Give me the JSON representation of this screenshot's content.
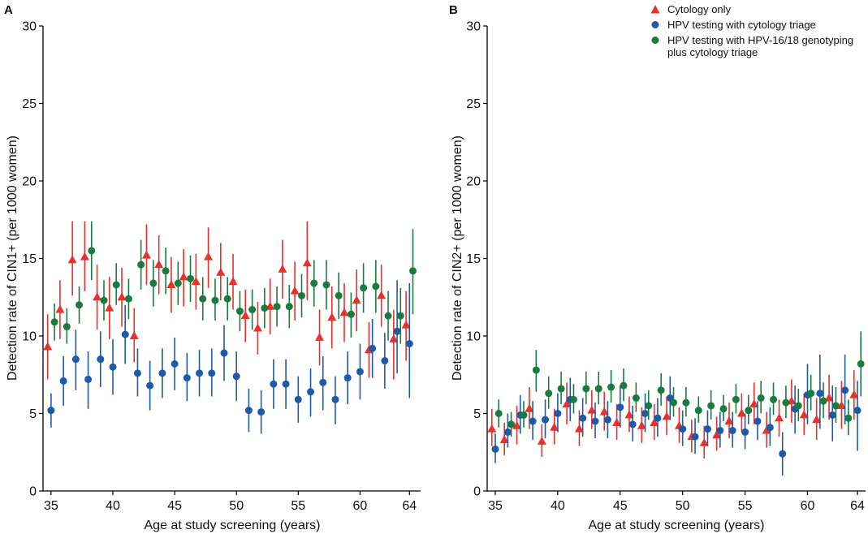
{
  "chart_data": [
    {
      "panel_label": "A",
      "type": "scatter",
      "xlabel": "Age at study screening (years)",
      "ylabel": "Detection rate of CIN1+ (per 1000 women)",
      "xticks": [
        35,
        40,
        45,
        50,
        55,
        60,
        64
      ],
      "yticks": [
        0,
        5,
        10,
        15,
        20,
        25,
        30
      ],
      "xlim": [
        34.35,
        64.9
      ],
      "ylim": [
        0,
        30
      ],
      "grid": false,
      "x": [
        35,
        36,
        37,
        38,
        39,
        40,
        41,
        42,
        43,
        44,
        45,
        46,
        47,
        48,
        49,
        50,
        51,
        52,
        53,
        54,
        55,
        56,
        57,
        58,
        59,
        60,
        61,
        62,
        63,
        64
      ],
      "series": [
        {
          "marker": "triangle",
          "color": "#e8312a",
          "values": [
            9.3,
            11.7,
            14.9,
            15.1,
            12.5,
            11.8,
            12.5,
            10.0,
            15.2,
            14.6,
            13.3,
            13.8,
            13.5,
            15.1,
            14.1,
            13.5,
            11.3,
            10.5,
            11.9,
            14.3,
            12.9,
            14.7,
            9.9,
            11.2,
            11.5,
            12.3,
            9.1,
            12.6,
            9.8,
            10.7
          ],
          "ci_low": [
            7.2,
            9.8,
            12.6,
            12.9,
            10.4,
            9.8,
            10.6,
            8.3,
            13.3,
            12.7,
            11.5,
            11.9,
            11.7,
            13.1,
            12.3,
            11.7,
            9.6,
            8.8,
            10.1,
            12.4,
            11.0,
            12.3,
            8.1,
            9.2,
            9.6,
            10.3,
            7.3,
            10.6,
            7.2,
            8.4
          ],
          "ci_high": [
            11.4,
            13.6,
            17.4,
            17.4,
            14.6,
            13.8,
            14.4,
            11.8,
            17.2,
            16.5,
            15.1,
            15.6,
            15.3,
            17.0,
            16.0,
            15.3,
            13.0,
            12.2,
            13.7,
            16.2,
            14.8,
            17.4,
            11.7,
            13.2,
            13.4,
            14.3,
            10.9,
            14.6,
            11.7,
            12.9
          ]
        },
        {
          "marker": "circle",
          "color": "#1f5aa8",
          "values": [
            5.2,
            7.1,
            8.5,
            7.2,
            8.5,
            8.0,
            10.1,
            7.6,
            6.8,
            7.6,
            8.2,
            7.3,
            7.6,
            7.6,
            8.9,
            7.4,
            5.2,
            5.1,
            6.9,
            6.9,
            5.9,
            6.4,
            7.0,
            5.9,
            7.3,
            7.7,
            9.2,
            8.4,
            10.3,
            9.5
          ],
          "ci_low": [
            4.1,
            5.5,
            6.5,
            5.3,
            6.7,
            6.2,
            8.2,
            6.1,
            5.2,
            6.0,
            6.5,
            5.8,
            6.1,
            6.1,
            7.1,
            5.8,
            3.8,
            3.7,
            5.3,
            5.3,
            4.4,
            4.8,
            5.2,
            4.3,
            5.6,
            5.9,
            7.3,
            6.6,
            7.6,
            6.0
          ],
          "ci_high": [
            6.3,
            8.7,
            10.4,
            9.0,
            10.3,
            9.8,
            12.0,
            9.2,
            8.4,
            9.2,
            9.9,
            8.9,
            9.1,
            9.2,
            10.7,
            9.0,
            6.6,
            6.5,
            8.5,
            8.5,
            7.4,
            7.9,
            8.7,
            7.4,
            9.0,
            9.5,
            11.1,
            10.2,
            13.6,
            13.4
          ]
        },
        {
          "marker": "circle",
          "color": "#1b7b3f",
          "values": [
            10.9,
            10.6,
            12.0,
            15.5,
            12.3,
            13.3,
            12.4,
            14.6,
            13.4,
            14.2,
            13.4,
            13.7,
            12.4,
            12.3,
            12.4,
            11.6,
            11.7,
            11.8,
            11.9,
            11.9,
            12.6,
            13.4,
            13.3,
            12.6,
            11.4,
            13.1,
            13.2,
            11.3,
            11.3,
            14.2
          ],
          "ci_low": [
            9.7,
            9.5,
            10.8,
            13.6,
            11.0,
            12.0,
            11.1,
            13.0,
            11.9,
            12.7,
            12.0,
            12.2,
            11.0,
            11.0,
            11.0,
            10.3,
            10.4,
            10.5,
            10.6,
            10.5,
            11.2,
            11.9,
            11.7,
            11.1,
            9.9,
            11.5,
            11.5,
            9.7,
            9.5,
            11.4
          ],
          "ci_high": [
            12.1,
            11.8,
            13.2,
            17.4,
            13.6,
            14.7,
            13.7,
            16.2,
            14.9,
            15.7,
            14.8,
            15.2,
            13.8,
            13.7,
            13.8,
            12.9,
            13.0,
            13.1,
            13.2,
            13.3,
            14.0,
            14.9,
            14.9,
            14.1,
            12.8,
            14.7,
            14.9,
            12.9,
            13.1,
            16.9
          ]
        }
      ]
    },
    {
      "panel_label": "B",
      "type": "scatter",
      "xlabel": "Age at study screening (years)",
      "ylabel": "Detection rate of CIN2+ (per 1000 women)",
      "xticks": [
        35,
        40,
        45,
        50,
        55,
        60,
        64
      ],
      "yticks": [
        0,
        5,
        10,
        15,
        20,
        25,
        30
      ],
      "xlim": [
        34.35,
        64.65
      ],
      "ylim": [
        0,
        30
      ],
      "grid": false,
      "legend": "top-right",
      "x": [
        35,
        36,
        37,
        38,
        39,
        40,
        41,
        42,
        43,
        44,
        45,
        46,
        47,
        48,
        49,
        50,
        51,
        52,
        53,
        54,
        55,
        56,
        57,
        58,
        59,
        60,
        61,
        62,
        63,
        64
      ],
      "series": [
        {
          "name": "Cytology only",
          "marker": "triangle",
          "color": "#e8312a",
          "values": [
            4.0,
            3.3,
            4.2,
            5.3,
            3.2,
            4.1,
            5.6,
            4.0,
            5.2,
            5.1,
            4.4,
            4.9,
            4.2,
            4.4,
            4.8,
            4.2,
            3.5,
            3.1,
            3.6,
            4.5,
            5.0,
            5.6,
            3.9,
            4.7,
            5.8,
            4.9,
            4.6,
            6.0,
            5.5,
            6.2
          ],
          "ci_low": [
            2.9,
            2.3,
            3.0,
            4.0,
            2.2,
            3.0,
            4.3,
            2.9,
            4.0,
            3.9,
            3.3,
            3.8,
            3.1,
            3.3,
            3.6,
            3.1,
            2.5,
            2.1,
            2.6,
            3.4,
            3.8,
            4.3,
            2.8,
            3.5,
            4.4,
            3.6,
            3.3,
            4.6,
            4.0,
            4.6
          ],
          "ci_high": [
            5.3,
            4.4,
            5.5,
            6.7,
            4.3,
            5.3,
            7.0,
            5.2,
            6.5,
            6.4,
            5.6,
            6.1,
            5.4,
            5.6,
            6.1,
            5.4,
            4.6,
            4.2,
            4.8,
            5.7,
            6.3,
            7.0,
            5.1,
            5.9,
            7.2,
            6.3,
            6.0,
            7.5,
            7.1,
            7.8
          ]
        },
        {
          "name": "HPV testing with cytology triage",
          "marker": "circle",
          "color": "#1f5aa8",
          "values": [
            2.7,
            3.8,
            4.9,
            4.5,
            4.6,
            5.0,
            5.9,
            4.7,
            4.5,
            4.6,
            5.4,
            4.3,
            5.0,
            4.7,
            6.0,
            4.0,
            3.5,
            4.0,
            3.9,
            3.9,
            3.8,
            4.5,
            4.1,
            2.4,
            5.3,
            6.2,
            6.3,
            4.9,
            6.5,
            5.2
          ],
          "ci_low": [
            1.8,
            2.8,
            3.7,
            3.3,
            3.4,
            3.8,
            4.5,
            3.5,
            3.4,
            3.4,
            4.1,
            3.2,
            3.8,
            3.5,
            4.6,
            2.9,
            2.4,
            2.9,
            2.8,
            2.8,
            2.7,
            3.3,
            2.9,
            1.0,
            3.7,
            4.3,
            4.0,
            3.2,
            4.3,
            2.6
          ],
          "ci_high": [
            3.7,
            5.0,
            6.2,
            5.8,
            5.9,
            6.3,
            7.3,
            6.0,
            5.7,
            5.8,
            6.8,
            5.5,
            6.3,
            6.0,
            7.4,
            5.2,
            4.7,
            5.2,
            5.1,
            5.1,
            5.0,
            5.8,
            5.4,
            3.8,
            6.8,
            8.2,
            8.8,
            6.8,
            8.8,
            7.1
          ]
        },
        {
          "name": "HPV testing with HPV-16/18 genotyping plus cytology triage",
          "marker": "circle",
          "color": "#1b7b3f",
          "values": [
            5.0,
            4.3,
            4.9,
            7.8,
            6.3,
            6.6,
            5.9,
            6.6,
            6.6,
            6.7,
            6.8,
            6.0,
            5.5,
            6.5,
            5.7,
            5.7,
            5.2,
            5.5,
            5.3,
            5.9,
            5.2,
            6.0,
            5.9,
            5.7,
            5.5,
            6.3,
            5.8,
            5.5,
            4.7,
            8.2
          ],
          "ci_low": [
            4.1,
            3.5,
            4.1,
            6.4,
            5.3,
            5.6,
            5.0,
            5.6,
            5.6,
            5.7,
            5.8,
            5.1,
            4.6,
            5.5,
            4.8,
            4.8,
            4.4,
            4.6,
            4.5,
            5.0,
            4.3,
            5.0,
            4.9,
            4.7,
            4.5,
            5.2,
            4.7,
            4.4,
            3.6,
            6.1
          ],
          "ci_high": [
            5.9,
            5.1,
            5.8,
            9.1,
            7.4,
            7.7,
            6.9,
            7.7,
            7.7,
            7.8,
            7.9,
            7.0,
            6.5,
            7.6,
            6.7,
            6.7,
            6.1,
            6.5,
            6.2,
            6.9,
            6.2,
            7.1,
            7.0,
            6.8,
            6.6,
            7.5,
            7.0,
            6.7,
            5.9,
            10.3
          ]
        }
      ]
    }
  ]
}
